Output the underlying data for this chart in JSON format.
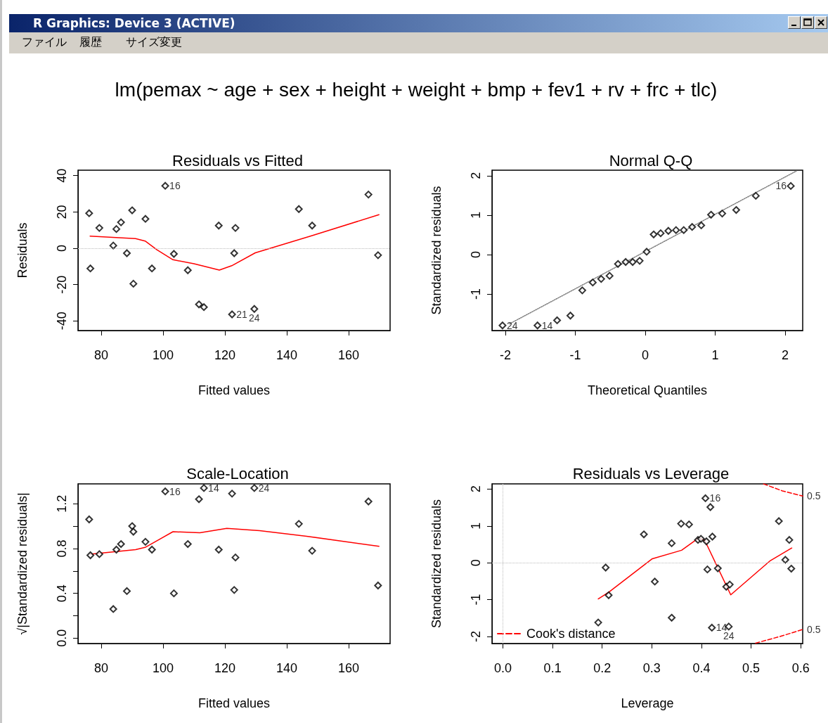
{
  "chart_data": [
    {
      "type": "scatter",
      "title": "Residuals vs Fitted",
      "xlabel": "Fitted values",
      "ylabel": "Residuals",
      "xlim": [
        72.5,
        173.4
      ],
      "ylim": [
        -45.3,
        43
      ],
      "xticks": [
        80,
        100,
        120,
        140,
        160
      ],
      "yticks": [
        -40,
        -20,
        0,
        20,
        40
      ],
      "grid": false,
      "series": [
        {
          "marker": "diamond",
          "color": "#000000",
          "x": [
            76.1,
            76.5,
            79.4,
            83.9,
            84.9,
            86.4,
            88.3,
            90.0,
            90.4,
            94.3,
            96.4,
            100.7,
            103.5,
            108.0,
            111.6,
            113.2,
            118.0,
            122.3,
            123.0,
            123.4,
            129.5,
            143.9,
            148.2,
            166.4,
            169.5
          ],
          "values": [
            19.3,
            -11.1,
            11.2,
            1.5,
            10.6,
            14.3,
            -2.7,
            20.9,
            -19.5,
            16.2,
            -11.1,
            34.4,
            -3.1,
            -12.1,
            -30.9,
            -32.4,
            12.5,
            -36.4,
            -2.7,
            11.2,
            -33.4,
            21.6,
            12.5,
            29.6,
            -3.8
          ]
        },
        {
          "type": "line",
          "marker": "none",
          "color": "#ff0000",
          "line_style": "solid",
          "x": [
            76.4,
            91.1,
            94.2,
            98,
            103.2,
            110,
            118.2,
            122.2,
            129.8,
            148,
            169.8
          ],
          "values": [
            6.7,
            5.3,
            4.0,
            -0.8,
            -6.3,
            -8.5,
            -12.0,
            -9.6,
            -2.5,
            6.9,
            18.5
          ]
        }
      ],
      "ref_lines": [
        {
          "axis": "y",
          "value": 0,
          "color": "#bbbbbb",
          "line_style": "dotted"
        }
      ],
      "annotations": [
        "R Graphics: Device 3 (ACTIVE)",
        "ファイル",
        "履歴",
        "サイズ変更",
        "lm(pemax ~ age + sex + height + weight + bmp + fev1 + rv + frc + tlc)",
        {
          "text": "16",
          "x": 100.7,
          "y": 34.4
        },
        {
          "text": "21",
          "x": 122.3,
          "y": -36.4
        },
        {
          "text": "24",
          "x": 129.5,
          "y": -33.4
        }
      ]
    },
    {
      "type": "scatter",
      "title": "Normal Q-Q",
      "xlabel": "Theoretical Quantiles",
      "ylabel": "Standardized residuals",
      "xlim": [
        -2.19,
        2.25
      ],
      "ylim": [
        -1.93,
        2.14
      ],
      "xticks": [
        -2,
        -1,
        0,
        1,
        2
      ],
      "yticks": [
        -1,
        0,
        1,
        2
      ],
      "grid": false,
      "series": [
        {
          "marker": "diamond",
          "color": "#000000",
          "x": [
            -2.04,
            -1.54,
            -1.26,
            -1.07,
            -0.9,
            -0.75,
            -0.63,
            -0.51,
            -0.39,
            -0.28,
            -0.18,
            -0.08,
            0.02,
            0.12,
            0.22,
            0.33,
            0.44,
            0.55,
            0.67,
            0.8,
            0.94,
            1.1,
            1.3,
            1.58,
            2.08
          ],
          "values": [
            -1.8,
            -1.8,
            -1.67,
            -1.55,
            -0.91,
            -0.71,
            -0.62,
            -0.54,
            -0.24,
            -0.19,
            -0.19,
            -0.16,
            0.07,
            0.51,
            0.54,
            0.6,
            0.62,
            0.62,
            0.7,
            0.74,
            1.01,
            1.04,
            1.13,
            1.49,
            1.74
          ]
        },
        {
          "type": "line",
          "marker": "none",
          "color": "#808080",
          "line_style": "dotted",
          "x": [
            -1.94,
            2.16
          ],
          "values": [
            -1.76,
            2.12
          ]
        }
      ],
      "annotations": [
        {
          "text": "24",
          "x": -2.04,
          "y": -1.8
        },
        {
          "text": "14",
          "x": -1.54,
          "y": -1.8
        },
        {
          "text": "16",
          "x": 2.08,
          "y": 1.74
        }
      ]
    },
    {
      "type": "scatter",
      "title": "Scale-Location",
      "xlabel": "Fitted values",
      "ylabel": "√|Standardized residuals|",
      "xlim": [
        72.5,
        173.4
      ],
      "ylim": [
        -0.048,
        1.377
      ],
      "xticks": [
        80,
        100,
        120,
        140,
        160
      ],
      "yticks": [
        {
          "value": 0,
          "label": "0.0"
        },
        {
          "value": 0.2,
          "label": null
        },
        {
          "value": 0.4,
          "label": "0.4"
        },
        {
          "value": 0.6,
          "label": null
        },
        {
          "value": 0.8,
          "label": "0.8"
        },
        {
          "value": 1.0,
          "label": null
        },
        {
          "value": 1.2,
          "label": "1.2"
        }
      ],
      "grid": false,
      "series": [
        {
          "marker": "diamond",
          "color": "#000000",
          "x": [
            76.1,
            76.5,
            79.4,
            83.9,
            84.9,
            86.4,
            88.3,
            90.0,
            90.4,
            94.3,
            96.4,
            100.7,
            103.5,
            108.0,
            111.6,
            113.2,
            118.0,
            122.3,
            123.0,
            123.4,
            129.5,
            143.9,
            148.2,
            166.4,
            169.5
          ],
          "values": [
            1.06,
            0.74,
            0.75,
            0.26,
            0.79,
            0.84,
            0.42,
            1.0,
            0.95,
            0.86,
            0.79,
            1.31,
            0.4,
            0.84,
            1.24,
            1.34,
            0.79,
            1.29,
            0.43,
            0.72,
            1.34,
            1.02,
            0.78,
            1.22,
            0.47
          ]
        },
        {
          "type": "line",
          "marker": "none",
          "color": "#ff0000",
          "line_style": "solid",
          "x": [
            76.4,
            91.1,
            94.2,
            103.2,
            111.9,
            120.6,
            131.2,
            146.4,
            169.8
          ],
          "values": [
            0.75,
            0.79,
            0.81,
            0.95,
            0.94,
            0.98,
            0.96,
            0.91,
            0.82
          ]
        }
      ],
      "annotations": [
        {
          "text": "16",
          "x": 100.7,
          "y": 1.31
        },
        {
          "text": "14",
          "x": 113.2,
          "y": 1.34
        },
        {
          "text": "24",
          "x": 129.5,
          "y": 1.34
        }
      ]
    },
    {
      "type": "scatter",
      "title": "Residuals vs Leverage",
      "xlabel": "Leverage",
      "ylabel": "Standardized residuals",
      "xlim": [
        -0.022,
        0.604
      ],
      "ylim": [
        -2.19,
        2.14
      ],
      "xticks": [
        {
          "value": 0,
          "label": "0.0"
        },
        0.1,
        0.2,
        0.3,
        0.4,
        0.5,
        0.6
      ],
      "yticks": [
        -2,
        -1,
        0,
        1,
        2
      ],
      "grid": false,
      "legend": "bottom left",
      "series": [
        {
          "marker": "diamond",
          "color": "#000000",
          "x": [
            0.408,
            0.418,
            0.359,
            0.375,
            0.284,
            0.556,
            0.34,
            0.393,
            0.399,
            0.41,
            0.422,
            0.577,
            0.569,
            0.581,
            0.207,
            0.412,
            0.433,
            0.306,
            0.45,
            0.457,
            0.213,
            0.34,
            0.192,
            0.421,
            0.455
          ],
          "values": [
            1.75,
            1.51,
            1.06,
            1.04,
            0.77,
            1.13,
            0.53,
            0.62,
            0.65,
            0.58,
            0.71,
            0.62,
            0.08,
            -0.16,
            -0.13,
            -0.18,
            -0.15,
            -0.51,
            -0.65,
            -0.59,
            -0.88,
            -1.49,
            -1.62,
            -1.76,
            -1.73
          ]
        },
        {
          "type": "line",
          "marker": "none",
          "color": "#ff0000",
          "line_style": "solid",
          "x": [
            0.192,
            0.214,
            0.301,
            0.36,
            0.395,
            0.407,
            0.459,
            0.539,
            0.582
          ],
          "values": [
            -0.98,
            -0.79,
            0.11,
            0.34,
            0.68,
            0.6,
            -0.87,
            0.06,
            0.4
          ]
        },
        {
          "type": "line",
          "marker": "none",
          "name": "Cook's distance",
          "color": "#ff0000",
          "line_style": "dashed",
          "x": [
            0.525,
            0.563,
            0.604
          ],
          "values": [
            2.14,
            1.95,
            1.81
          ]
        },
        {
          "type": "line",
          "marker": "none",
          "color": "#ff0000",
          "line_style": "dashed",
          "x": [
            0.509,
            0.558,
            0.604
          ],
          "values": [
            -2.18,
            -2.0,
            -1.81
          ]
        }
      ],
      "ref_lines": [
        {
          "axis": "x",
          "value": 0,
          "color": "#bbbbbb",
          "line_style": "dotted"
        },
        {
          "axis": "y",
          "value": 0,
          "color": "#bbbbbb",
          "line_style": "dotted"
        }
      ],
      "annotations": [
        {
          "text": "16",
          "x": 0.408,
          "y": 1.75
        },
        {
          "text": "14",
          "x": 0.421,
          "y": -1.76
        },
        {
          "text": "24",
          "x": 0.455,
          "y": -1.73
        },
        {
          "text": "0.5",
          "x": 0.604,
          "y": 1.81
        },
        {
          "text": "0.5",
          "x": 0.604,
          "y": -1.81
        }
      ]
    }
  ]
}
